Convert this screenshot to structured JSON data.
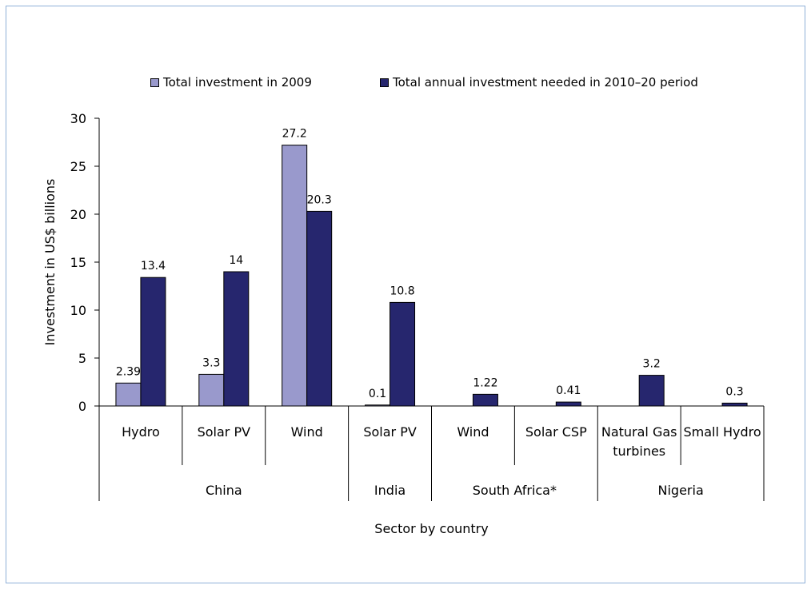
{
  "chart_data": {
    "type": "bar",
    "title": "",
    "xlabel": "Sector by country",
    "ylabel": "Investment in US$ billions",
    "ylim": [
      0,
      30
    ],
    "yticks": [
      "0",
      "5",
      "10",
      "15",
      "20",
      "25",
      "30"
    ],
    "categories": [
      "Hydro",
      "Solar PV",
      "Wind",
      "Solar PV",
      "Wind",
      "Solar CSP",
      "Natural Gas turbines",
      "Small Hydro"
    ],
    "category_lines": [
      [
        "Hydro"
      ],
      [
        "Solar PV"
      ],
      [
        "Wind"
      ],
      [
        "Solar PV"
      ],
      [
        "Wind"
      ],
      [
        "Solar CSP"
      ],
      [
        "Natural Gas",
        "turbines"
      ],
      [
        "Small Hydro"
      ]
    ],
    "groups": [
      {
        "name": "China",
        "span": [
          0,
          2
        ]
      },
      {
        "name": "India",
        "span": [
          3,
          3
        ]
      },
      {
        "name": "South Africa*",
        "span": [
          4,
          5
        ]
      },
      {
        "name": "Nigeria",
        "span": [
          6,
          7
        ]
      }
    ],
    "series": [
      {
        "name": "Total investment in 2009",
        "color": "#9999cc",
        "values": [
          2.39,
          3.3,
          27.2,
          0.1,
          null,
          null,
          null,
          null
        ],
        "labels": [
          "2.39",
          "3.3",
          "27.2",
          "0.1",
          "",
          "",
          "",
          ""
        ]
      },
      {
        "name": "Total annual investment needed in 2010–20 period",
        "color": "#26266e",
        "values": [
          13.4,
          14,
          20.3,
          10.8,
          1.22,
          0.41,
          3.2,
          0.3
        ],
        "labels": [
          "13.4",
          "14",
          "20.3",
          "10.8",
          "1.22",
          "0.41",
          "3.2",
          "0.3"
        ]
      }
    ],
    "legend_position": "top",
    "grid": false
  }
}
